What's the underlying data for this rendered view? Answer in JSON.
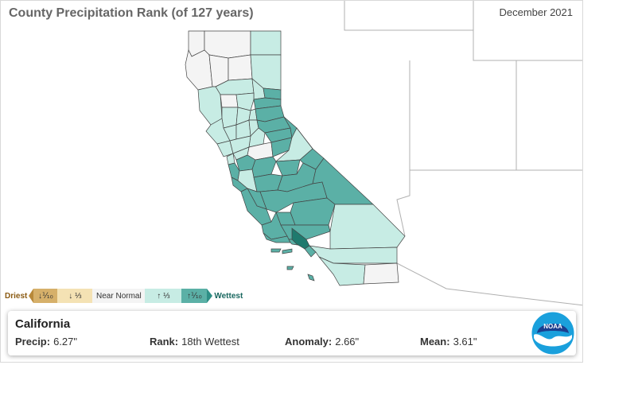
{
  "header": {
    "title": "County Precipitation Rank (of 127 years)",
    "period": "December 2021"
  },
  "legend": {
    "driest_label": "Driest",
    "wettest_label": "Wettest",
    "bins": [
      {
        "label": "↓⅒",
        "color": "#d6b06a"
      },
      {
        "label": "↓ ⅓",
        "color": "#f4e2b4"
      },
      {
        "label": "Near Normal",
        "color": "#f4f4f4"
      },
      {
        "label": "↑ ⅓",
        "color": "#c7ece4"
      },
      {
        "label": "↑⅒",
        "color": "#5bb0a6"
      }
    ],
    "extra_colors": {
      "record_wettest": "#1f7a6e",
      "border": "#444444",
      "state_outline": "#999999"
    }
  },
  "info": {
    "region": "California",
    "precip_label": "Precip:",
    "precip_value": "6.27\"",
    "rank_label": "Rank:",
    "rank_value": "18th Wettest",
    "anomaly_label": "Anomaly:",
    "anomaly_value": "2.66\"",
    "mean_label": "Mean:",
    "mean_value": "3.61\""
  },
  "logo": {
    "text": "NOAA",
    "icon": "noaa-logo-icon"
  }
}
